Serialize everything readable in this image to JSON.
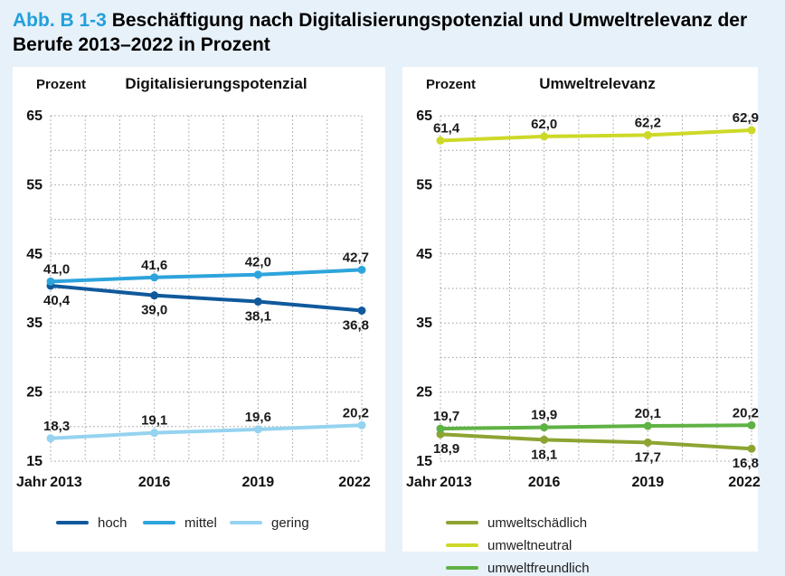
{
  "page": {
    "figure_label": "Abb. B 1-3",
    "title_line1": "Beschäftigung nach Digitalisierungspotenzial und Umweltrelevanz der",
    "title_line2": "Berufe 2013–2022 in Prozent",
    "colors": {
      "accent_blue": "#21a0db",
      "background": "#e7f1fa",
      "panel": "#ffffff"
    }
  },
  "chart_data": [
    {
      "type": "line",
      "title": "Digitalisierungspotenzial",
      "ylabel": "Prozent",
      "xlabel": "Jahr",
      "x": [
        2013,
        2016,
        2019,
        2022
      ],
      "x_gridlines": [
        2013,
        2014,
        2015,
        2016,
        2017,
        2018,
        2019,
        2020,
        2021,
        2022
      ],
      "ylim": [
        15,
        65
      ],
      "ygrid_step": 5,
      "yticks": [
        15,
        25,
        35,
        45,
        55,
        65
      ],
      "grid": true,
      "legend_position": "bottom",
      "decimal_separator": ",",
      "series": [
        {
          "name": "hoch",
          "color": "#10599c",
          "values": [
            40.4,
            39.0,
            38.1,
            36.8
          ],
          "label_side": "below"
        },
        {
          "name": "mittel",
          "color": "#2da4dc",
          "values": [
            41.0,
            41.6,
            42.0,
            42.7
          ],
          "label_side": "above"
        },
        {
          "name": "gering",
          "color": "#95d3f0",
          "values": [
            18.3,
            19.1,
            19.6,
            20.2
          ],
          "label_side": "above"
        }
      ]
    },
    {
      "type": "line",
      "title": "Umweltrelevanz",
      "ylabel": "Prozent",
      "xlabel": "Jahr",
      "x": [
        2013,
        2016,
        2019,
        2022
      ],
      "x_gridlines": [
        2013,
        2014,
        2015,
        2016,
        2017,
        2018,
        2019,
        2020,
        2021,
        2022
      ],
      "ylim": [
        15,
        65
      ],
      "ygrid_step": 5,
      "yticks": [
        15,
        25,
        35,
        45,
        55,
        65
      ],
      "grid": true,
      "legend_position": "bottom",
      "decimal_separator": ",",
      "series": [
        {
          "name": "umweltschädlich",
          "color": "#8da432",
          "values": [
            18.9,
            18.1,
            17.7,
            16.8
          ],
          "label_side": "below"
        },
        {
          "name": "umweltneutral",
          "color": "#cdd928",
          "values": [
            61.4,
            62.0,
            62.2,
            62.9
          ],
          "label_side": "above"
        },
        {
          "name": "umweltfreundlich",
          "color": "#5fb244",
          "values": [
            19.7,
            19.9,
            20.1,
            20.2
          ],
          "label_side": "above"
        }
      ]
    }
  ]
}
